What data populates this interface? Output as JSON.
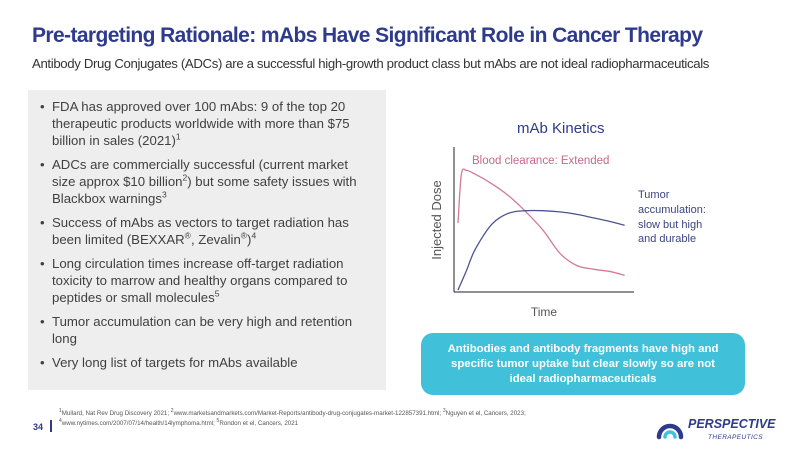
{
  "slide": {
    "title": "Pre-targeting Rationale: mAbs Have Significant Role in Cancer Therapy",
    "subtitle": "Antibody Drug Conjugates (ADCs) are a successful high-growth product class but mAbs are not ideal radiopharmaceuticals",
    "page_number": "34"
  },
  "bullets": [
    {
      "text": "FDA has approved over 100 mAbs: 9 of the top 20 therapeutic products worldwide with more than $75 billion in sales (2021)",
      "ref": "1"
    },
    {
      "text": "ADCs are commercially successful (current market size approx $10 billion",
      "ref_mid": "2",
      "text2": ") but some safety issues with Blackbox warnings",
      "ref": "3"
    },
    {
      "text": "Success of mAbs as vectors to target radiation has been limited (BEXXAR",
      "reg1": "®",
      "text2": ", Zevalin",
      "reg2": "®",
      "text3": ")",
      "ref": "4"
    },
    {
      "text": "Long circulation times increase off-target radiation toxicity to marrow and healthy organs compared to peptides or small molecules",
      "ref": "5"
    },
    {
      "text": "Tumor accumulation can be very high and retention long"
    },
    {
      "text": "Very long list of targets for mAbs available"
    }
  ],
  "chart": {
    "heading": "mAb Kinetics",
    "colors": {
      "axis": "#222222",
      "blood": "#d4799a",
      "tumor": "#4a5590"
    }
  },
  "chart_data": {
    "type": "line",
    "xlabel": "Time",
    "ylabel": "Injected Dose",
    "xlim": [
      0,
      100
    ],
    "ylim": [
      0,
      100
    ],
    "grid": false,
    "legend": "none",
    "series": [
      {
        "annotation": "Blood clearance: Extended",
        "color": "#d4799a",
        "x": [
          0,
          2,
          5,
          10,
          20,
          30,
          40,
          50,
          60,
          70,
          80,
          90,
          98
        ],
        "y": [
          55,
          95,
          98,
          95,
          87,
          77,
          64,
          49,
          30,
          20,
          17,
          15,
          12
        ]
      },
      {
        "annotation": "Tumor accumulation: slow but high and durable",
        "color": "#4a5590",
        "x": [
          0,
          5,
          10,
          20,
          30,
          40,
          50,
          60,
          70,
          80,
          90,
          98
        ],
        "y": [
          0,
          16,
          33,
          54,
          63,
          65,
          65,
          64,
          62,
          59,
          56,
          53
        ]
      }
    ]
  },
  "callout": {
    "text": "Antibodies and antibody fragments have high and specific tumor uptake but clear slowly so are not ideal radiopharmaceuticals"
  },
  "footnotes": {
    "line1_a": "Mullard, Nat Rev Drug Discovery 2021; ",
    "line1_b": "www.marketsandmarkets.com/Market-Reports/antibody-drug-conjugates-market-122857391.html; ",
    "line1_c": "Nguyen et el, Cancers, 2023;",
    "line2_a": "www.nytimes.com/2007/07/14/health/14lymphoma.html; ",
    "line2_b": "Rondon et el, Cancers, 2021",
    "refs": [
      "1",
      "2",
      "3",
      "4",
      "5"
    ]
  },
  "logo": {
    "name": "PERSPECTIVE",
    "tagline": "THERAPEUTICS",
    "colors": {
      "primary": "#2e3a8c",
      "accent": "#40c1d9"
    }
  }
}
